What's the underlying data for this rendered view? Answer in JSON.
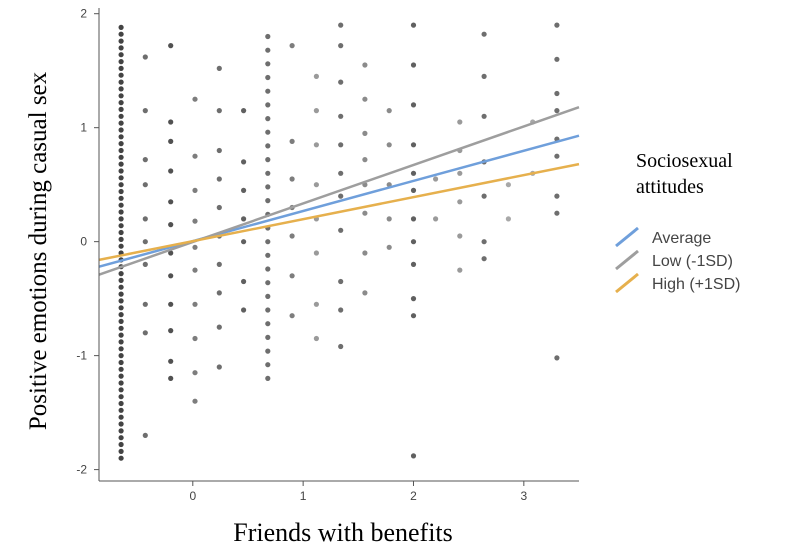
{
  "chart_data": {
    "type": "scatter",
    "title": "",
    "xlabel": "Friends with benefits",
    "ylabel": "Positive emotions during casual sex",
    "xlim": [
      -0.85,
      3.5
    ],
    "ylim": [
      -2.1,
      2.05
    ],
    "x_ticks": [
      0,
      1,
      2,
      3
    ],
    "x_tick_labels": [
      "0",
      "1",
      "2",
      "3"
    ],
    "y_ticks": [
      -2,
      -1,
      0,
      1,
      2
    ],
    "y_tick_labels": [
      "-2",
      "-1",
      "0",
      "1",
      "2"
    ],
    "grid": false,
    "legend": {
      "title_line1": "Sociosexual",
      "title_line2": "attitudes",
      "position": "right"
    },
    "series": [
      {
        "name": "Average",
        "color": "#6f9fdb",
        "x": [
          -0.85,
          3.5
        ],
        "y": [
          -0.22,
          0.93
        ]
      },
      {
        "name": "Low (-1SD)",
        "color": "#9e9e9e",
        "x": [
          -0.85,
          3.5
        ],
        "y": [
          -0.29,
          1.18
        ]
      },
      {
        "name": "High (+1SD)",
        "color": "#e6b04d",
        "x": [
          -0.85,
          3.5
        ],
        "y": [
          -0.16,
          0.68
        ]
      }
    ],
    "scatter_columns": [
      {
        "x": -0.65,
        "yrange": [
          -1.9,
          1.9
        ],
        "step": 0.06,
        "shade": "#222222"
      },
      {
        "x": -0.43,
        "values": [
          1.62,
          1.15,
          0.72,
          0.5,
          0.2,
          0.0,
          -0.2,
          -0.55,
          -0.8,
          -1.7
        ],
        "shade": "#555555"
      },
      {
        "x": -0.2,
        "values": [
          1.72,
          1.05,
          0.88,
          0.62,
          0.35,
          0.15,
          -0.1,
          -0.3,
          -0.55,
          -0.78,
          -1.05,
          -1.2
        ],
        "shade": "#333333"
      },
      {
        "x": 0.02,
        "values": [
          1.25,
          0.75,
          0.45,
          0.18,
          -0.05,
          -0.25,
          -0.55,
          -0.85,
          -1.15,
          -1.4
        ],
        "shade": "#666666"
      },
      {
        "x": 0.24,
        "values": [
          1.52,
          1.15,
          0.8,
          0.55,
          0.3,
          0.05,
          -0.2,
          -0.45,
          -0.75,
          -1.1
        ],
        "shade": "#555555"
      },
      {
        "x": 0.46,
        "values": [
          1.15,
          0.7,
          0.45,
          0.2,
          0.0,
          -0.35,
          -0.6
        ],
        "shade": "#444444"
      },
      {
        "x": 0.68,
        "yrange": [
          -1.2,
          1.9
        ],
        "step": 0.12,
        "shade": "#555555"
      },
      {
        "x": 0.9,
        "values": [
          1.72,
          0.88,
          0.55,
          0.3,
          0.05,
          -0.3,
          -0.65
        ],
        "shade": "#666666"
      },
      {
        "x": 1.12,
        "values": [
          1.45,
          1.15,
          0.85,
          0.5,
          0.2,
          -0.1,
          -0.55,
          -0.85
        ],
        "shade": "#888888"
      },
      {
        "x": 1.34,
        "values": [
          1.9,
          1.72,
          1.4,
          1.1,
          0.85,
          0.6,
          0.4,
          0.1,
          -0.35,
          -0.6,
          -0.92
        ],
        "shade": "#555555"
      },
      {
        "x": 1.56,
        "values": [
          1.55,
          1.25,
          0.95,
          0.72,
          0.5,
          0.25,
          -0.1,
          -0.45
        ],
        "shade": "#777777"
      },
      {
        "x": 1.78,
        "values": [
          1.15,
          0.85,
          0.5,
          0.2,
          -0.05
        ],
        "shade": "#777777"
      },
      {
        "x": 2.0,
        "values": [
          1.9,
          1.55,
          1.2,
          0.85,
          0.6,
          0.45,
          0.2,
          0.0,
          -0.2,
          -0.5,
          -0.65,
          -1.88
        ],
        "shade": "#444444"
      },
      {
        "x": 2.2,
        "values": [
          0.55,
          0.2
        ],
        "shade": "#888888"
      },
      {
        "x": 2.42,
        "values": [
          1.05,
          0.8,
          0.6,
          0.35,
          0.05,
          -0.25
        ],
        "shade": "#888888"
      },
      {
        "x": 2.64,
        "values": [
          1.82,
          1.45,
          1.1,
          0.7,
          0.4,
          0.0,
          -0.15
        ],
        "shade": "#555555"
      },
      {
        "x": 2.86,
        "values": [
          0.5,
          0.2
        ],
        "shade": "#999999"
      },
      {
        "x": 3.08,
        "values": [
          1.05,
          0.6
        ],
        "shade": "#999999"
      },
      {
        "x": 3.3,
        "values": [
          1.9,
          1.6,
          1.3,
          1.15,
          0.9,
          0.75,
          0.4,
          0.25,
          -1.02
        ],
        "shade": "#555555"
      }
    ]
  }
}
